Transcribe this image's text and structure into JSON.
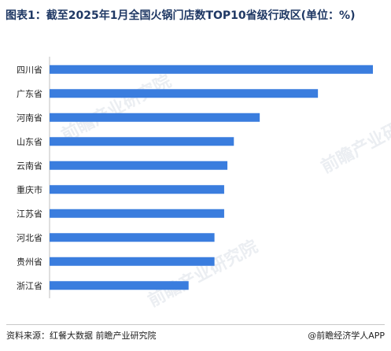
{
  "watermark": "前瞻产业研究院",
  "footer": {
    "source": "资料来源：红餐大数据 前瞻产业研究院",
    "brand": "@前瞻经济学人APP"
  },
  "colors": {
    "bar": "#3a7dde",
    "axis": "#bfbfbf",
    "title": "#1f3864",
    "tick_label": "#222222"
  },
  "chart_data": {
    "type": "bar",
    "orientation": "horizontal",
    "title": "图表1：截至2025年1月全国火锅门店数TOP10省级行政区(单位：%)",
    "xlabel": "",
    "ylabel": "",
    "categories": [
      "四川省",
      "广东省",
      "河南省",
      "山东省",
      "云南省",
      "重庆市",
      "江苏省",
      "河北省",
      "贵州省",
      "浙江省"
    ],
    "values": [
      10.0,
      8.3,
      6.5,
      5.7,
      5.5,
      5.4,
      5.4,
      5.1,
      5.1,
      4.3
    ],
    "xlim": [
      0,
      10.0
    ],
    "grid": false,
    "legend": "none"
  }
}
